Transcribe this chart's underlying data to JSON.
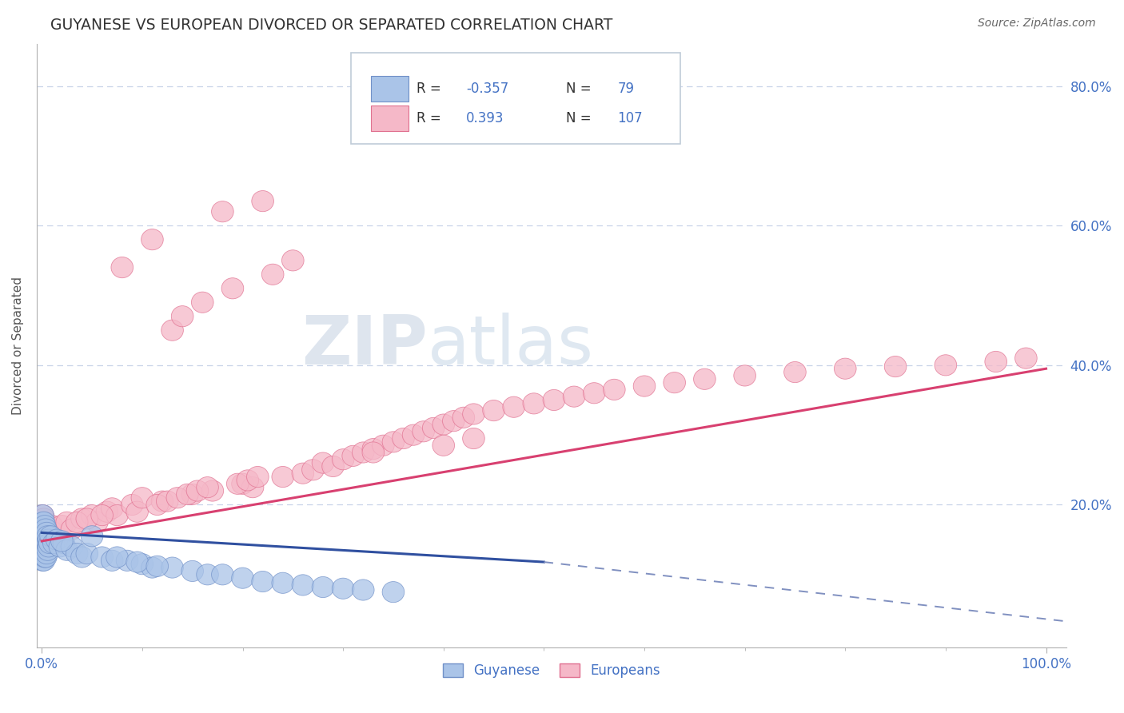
{
  "title": "GUYANESE VS EUROPEAN DIVORCED OR SEPARATED CORRELATION CHART",
  "source": "Source: ZipAtlas.com",
  "ylabel": "Divorced or Separated",
  "color_guyanese_fill": "#aac4e8",
  "color_guyanese_edge": "#7090c8",
  "color_europeans_fill": "#f5b8c8",
  "color_europeans_edge": "#e07090",
  "color_line_guyanese_solid": "#3050a0",
  "color_line_guyanese_dash": "#8090c0",
  "color_line_europeans": "#d84070",
  "color_text_blue": "#4472c4",
  "color_text_dark": "#333333",
  "color_axis": "#b0b0b0",
  "color_grid": "#c8d4e8",
  "background_color": "#ffffff",
  "watermark_zip": "ZIP",
  "watermark_atlas": "atlas",
  "xlim": [
    -0.005,
    1.02
  ],
  "ylim": [
    -0.005,
    0.86
  ],
  "ytick_vals": [
    0.0,
    0.2,
    0.4,
    0.6,
    0.8
  ],
  "ytick_labels": [
    "",
    "20.0%",
    "40.0%",
    "60.0%",
    "80.0%"
  ],
  "guyanese_x": [
    0.001,
    0.001,
    0.001,
    0.001,
    0.001,
    0.001,
    0.001,
    0.001,
    0.001,
    0.001,
    0.002,
    0.002,
    0.002,
    0.002,
    0.002,
    0.002,
    0.002,
    0.002,
    0.002,
    0.002,
    0.003,
    0.003,
    0.003,
    0.003,
    0.003,
    0.003,
    0.003,
    0.003,
    0.003,
    0.004,
    0.004,
    0.004,
    0.004,
    0.004,
    0.004,
    0.005,
    0.005,
    0.005,
    0.005,
    0.005,
    0.006,
    0.006,
    0.006,
    0.007,
    0.007,
    0.008,
    0.009,
    0.012,
    0.015,
    0.018,
    0.022,
    0.025,
    0.03,
    0.035,
    0.04,
    0.045,
    0.06,
    0.07,
    0.085,
    0.1,
    0.11,
    0.13,
    0.15,
    0.165,
    0.18,
    0.2,
    0.22,
    0.24,
    0.26,
    0.28,
    0.3,
    0.32,
    0.35,
    0.02,
    0.05,
    0.075,
    0.095,
    0.115
  ],
  "guyanese_y": [
    0.145,
    0.155,
    0.165,
    0.13,
    0.175,
    0.185,
    0.14,
    0.12,
    0.16,
    0.15,
    0.145,
    0.155,
    0.135,
    0.165,
    0.175,
    0.14,
    0.13,
    0.16,
    0.15,
    0.12,
    0.15,
    0.16,
    0.14,
    0.17,
    0.13,
    0.145,
    0.155,
    0.135,
    0.125,
    0.155,
    0.145,
    0.165,
    0.135,
    0.125,
    0.15,
    0.16,
    0.14,
    0.15,
    0.13,
    0.145,
    0.155,
    0.145,
    0.135,
    0.15,
    0.14,
    0.145,
    0.155,
    0.145,
    0.15,
    0.14,
    0.145,
    0.135,
    0.14,
    0.13,
    0.125,
    0.13,
    0.125,
    0.12,
    0.12,
    0.115,
    0.11,
    0.11,
    0.105,
    0.1,
    0.1,
    0.095,
    0.09,
    0.088,
    0.085,
    0.082,
    0.08,
    0.078,
    0.075,
    0.148,
    0.155,
    0.125,
    0.118,
    0.112
  ],
  "europeans_x": [
    0.001,
    0.001,
    0.001,
    0.001,
    0.001,
    0.001,
    0.001,
    0.001,
    0.002,
    0.002,
    0.002,
    0.002,
    0.002,
    0.002,
    0.002,
    0.003,
    0.003,
    0.003,
    0.003,
    0.003,
    0.004,
    0.004,
    0.004,
    0.004,
    0.005,
    0.005,
    0.005,
    0.006,
    0.006,
    0.008,
    0.01,
    0.012,
    0.02,
    0.025,
    0.03,
    0.04,
    0.05,
    0.055,
    0.065,
    0.07,
    0.075,
    0.08,
    0.09,
    0.095,
    0.1,
    0.11,
    0.12,
    0.13,
    0.14,
    0.15,
    0.16,
    0.17,
    0.18,
    0.19,
    0.2,
    0.21,
    0.22,
    0.23,
    0.24,
    0.25,
    0.26,
    0.27,
    0.28,
    0.29,
    0.3,
    0.31,
    0.32,
    0.33,
    0.34,
    0.35,
    0.36,
    0.37,
    0.38,
    0.39,
    0.4,
    0.41,
    0.42,
    0.43,
    0.45,
    0.47,
    0.49,
    0.51,
    0.53,
    0.55,
    0.57,
    0.6,
    0.63,
    0.66,
    0.7,
    0.75,
    0.8,
    0.85,
    0.9,
    0.95,
    0.98,
    0.035,
    0.045,
    0.06,
    0.115,
    0.125,
    0.135,
    0.145,
    0.155,
    0.165,
    0.195,
    0.205,
    0.215,
    0.4,
    0.43,
    0.33
  ],
  "europeans_y": [
    0.155,
    0.165,
    0.145,
    0.175,
    0.135,
    0.185,
    0.14,
    0.15,
    0.16,
    0.15,
    0.17,
    0.14,
    0.18,
    0.145,
    0.135,
    0.165,
    0.155,
    0.145,
    0.175,
    0.135,
    0.16,
    0.15,
    0.17,
    0.14,
    0.155,
    0.165,
    0.145,
    0.16,
    0.15,
    0.165,
    0.17,
    0.16,
    0.17,
    0.175,
    0.165,
    0.18,
    0.185,
    0.175,
    0.19,
    0.195,
    0.185,
    0.54,
    0.2,
    0.19,
    0.21,
    0.58,
    0.205,
    0.45,
    0.47,
    0.215,
    0.49,
    0.22,
    0.62,
    0.51,
    0.23,
    0.225,
    0.635,
    0.53,
    0.24,
    0.55,
    0.245,
    0.25,
    0.26,
    0.255,
    0.265,
    0.27,
    0.275,
    0.28,
    0.285,
    0.29,
    0.295,
    0.3,
    0.305,
    0.31,
    0.315,
    0.32,
    0.325,
    0.33,
    0.335,
    0.34,
    0.345,
    0.35,
    0.355,
    0.36,
    0.365,
    0.37,
    0.375,
    0.38,
    0.385,
    0.39,
    0.395,
    0.398,
    0.4,
    0.405,
    0.41,
    0.175,
    0.18,
    0.185,
    0.2,
    0.205,
    0.21,
    0.215,
    0.22,
    0.225,
    0.23,
    0.235,
    0.24,
    0.285,
    0.295,
    0.275
  ],
  "line_guyanese_x0": 0.0,
  "line_guyanese_y0": 0.16,
  "line_guyanese_x1": 0.5,
  "line_guyanese_y1": 0.118,
  "line_guyanese_dash_x1": 1.02,
  "line_guyanese_dash_y1": 0.033,
  "line_europeans_x0": 0.0,
  "line_europeans_y0": 0.148,
  "line_europeans_x1": 1.0,
  "line_europeans_y1": 0.395
}
